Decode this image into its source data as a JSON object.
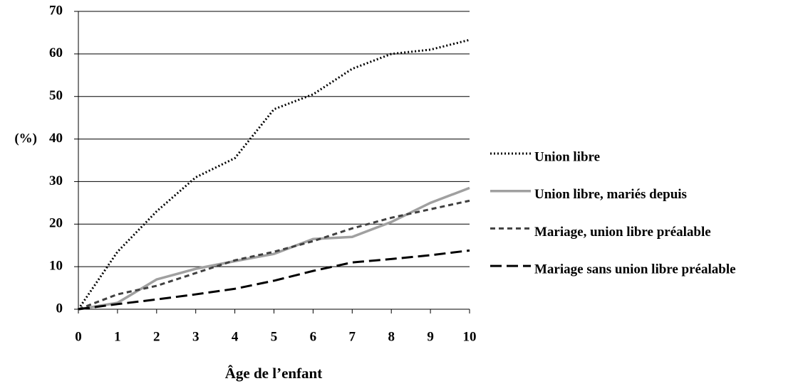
{
  "chart_data": {
    "type": "line",
    "x_label": "Âge de l’enfant",
    "y_label": "(%)",
    "x": [
      0,
      1,
      2,
      3,
      4,
      5,
      6,
      7,
      8,
      9,
      10
    ],
    "xlim": [
      0,
      10
    ],
    "xticks": [
      0,
      1,
      2,
      3,
      4,
      5,
      6,
      7,
      8,
      9,
      10
    ],
    "ylim": [
      0,
      70
    ],
    "yticks": [
      0,
      10,
      20,
      30,
      40,
      50,
      60,
      70
    ],
    "grid": true,
    "legend": "right",
    "series": [
      {
        "name": "Union libre",
        "color": "#000000",
        "dash": "dotted",
        "values": [
          0,
          13.5,
          23,
          31,
          35.5,
          47,
          50.5,
          56.5,
          60,
          61,
          63.3
        ]
      },
      {
        "name": "Union libre, mariés depuis",
        "color": "#a0a0a0",
        "dash": "solid",
        "values": [
          0,
          1.5,
          7,
          9.5,
          11.3,
          13,
          16.5,
          17,
          20.5,
          25,
          28.5
        ]
      },
      {
        "name": "Mariage, union libre préalable",
        "color": "#404040",
        "dash": "dashed",
        "values": [
          0,
          3.5,
          5.5,
          8.5,
          11.5,
          13.5,
          16,
          19,
          21.5,
          23.5,
          25.5
        ]
      },
      {
        "name": "Mariage sans union libre préalable",
        "color": "#000000",
        "dash": "longdash",
        "values": [
          0,
          1.2,
          2.3,
          3.5,
          4.8,
          6.7,
          9,
          11,
          11.8,
          12.7,
          13.8
        ]
      }
    ]
  }
}
